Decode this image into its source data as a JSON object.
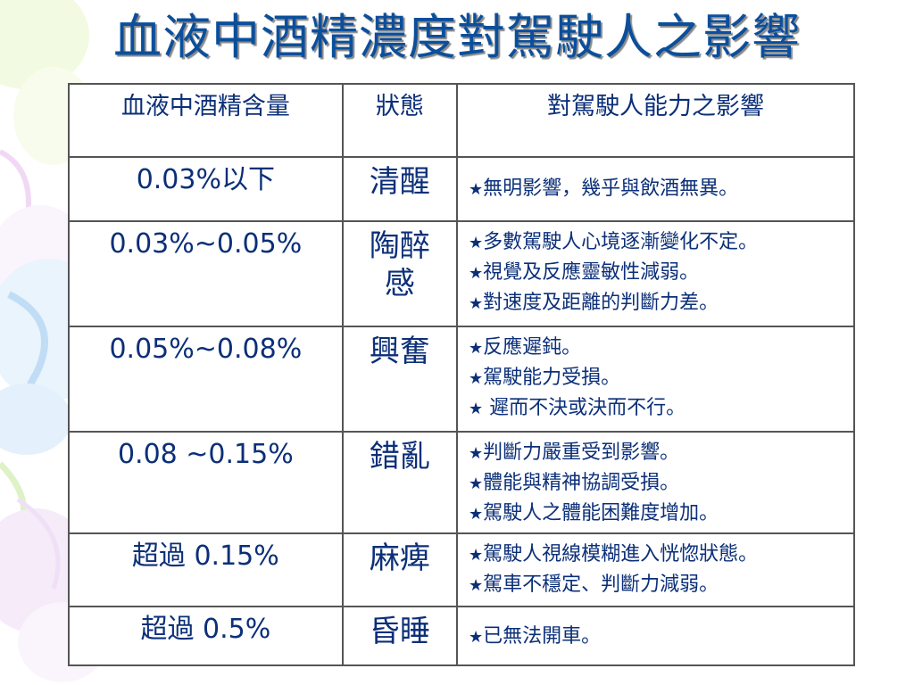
{
  "title": "血液中酒精濃度對駕駛人之影響",
  "colors": {
    "title": "#0b4f9c",
    "text": "#0b2f78",
    "border": "#555555"
  },
  "table": {
    "headers": [
      "血液中酒精含量",
      "狀態",
      "對駕駛人能力之影響"
    ],
    "star_icon": "★",
    "rows": [
      {
        "concentration": "0.03%以下",
        "state": "清醒",
        "effects": [
          "無明影響，幾乎與飲酒無異。"
        ]
      },
      {
        "concentration": "0.03%~0.05%",
        "state": "陶醉感",
        "effects": [
          "多數駕駛人心境逐漸變化不定。",
          "視覺及反應靈敏性減弱。",
          "對速度及距離的判斷力差。"
        ]
      },
      {
        "concentration": "0.05%~0.08%",
        "state": "興奮",
        "effects": [
          "反應遲鈍。",
          "駕駛能力受損。",
          " 遲而不決或決而不行。"
        ]
      },
      {
        "concentration": "0.08 ~0.15%",
        "state": "錯亂",
        "effects": [
          "判斷力嚴重受到影響。",
          "體能與精神協調受損。",
          "駕駛人之體能困難度增加。"
        ]
      },
      {
        "concentration": "超過 0.15%",
        "state": "麻痺",
        "effects": [
          "駕駛人視線模糊進入恍惚狀態。",
          "駕車不穩定、判斷力減弱。"
        ]
      },
      {
        "concentration": "超過 0.5%",
        "state": "昏睡",
        "effects": [
          "已無法開車。"
        ]
      }
    ]
  }
}
